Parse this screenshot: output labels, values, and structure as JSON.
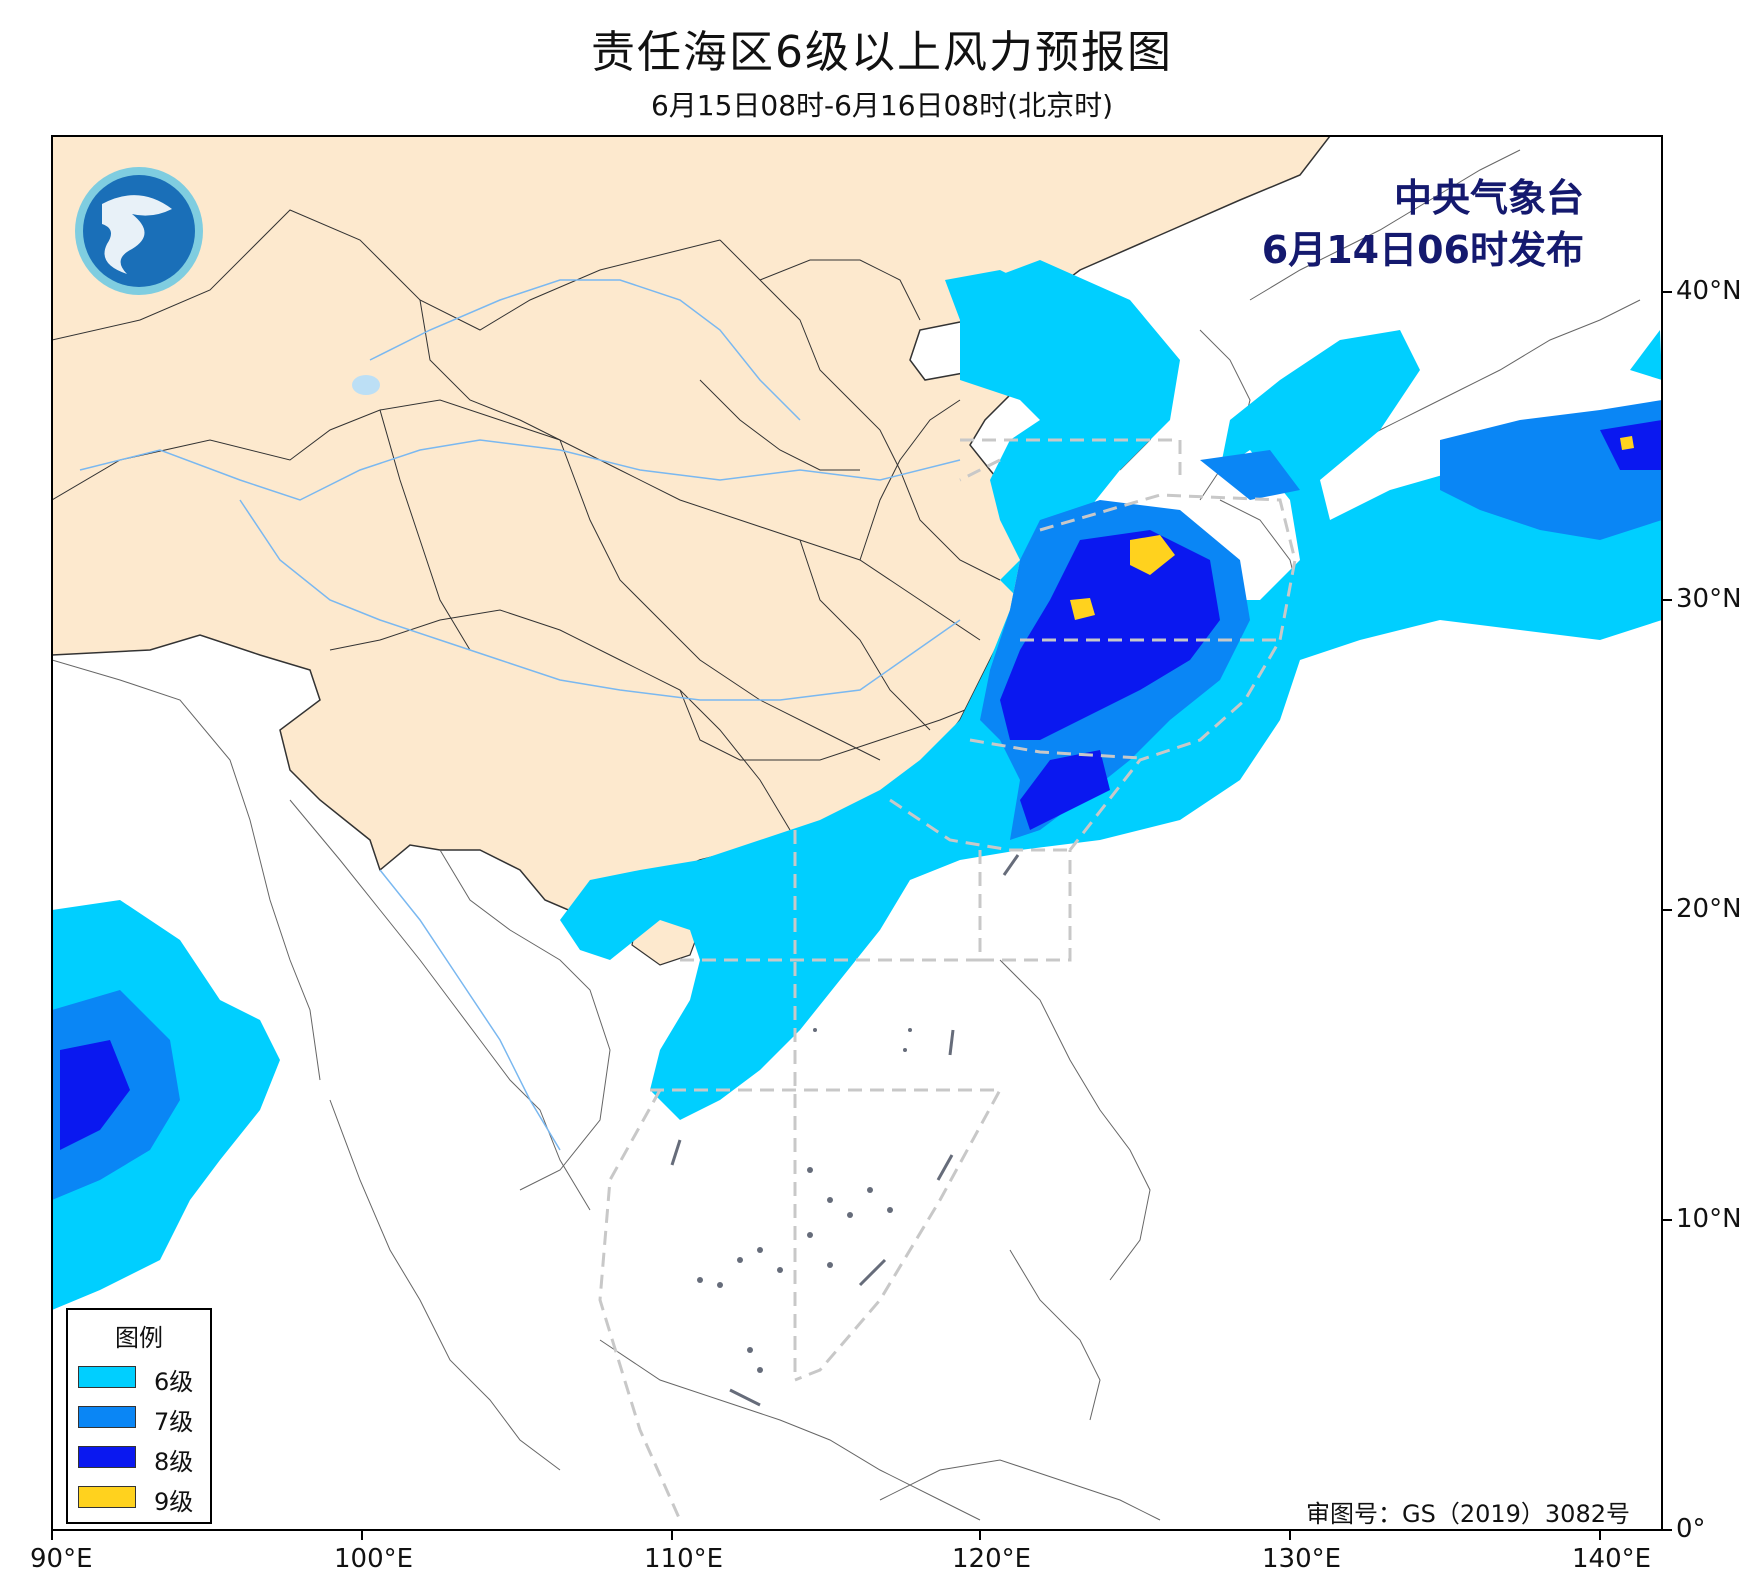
{
  "title": "责任海区6级以上风力预报图",
  "subtitle": "6月15日08时-6月16日08时(北京时)",
  "issuer": {
    "name": "中央气象台",
    "issued": "6月14日06时发布"
  },
  "approval": "审图号：GS（2019）3082号",
  "legend": {
    "title": "图例",
    "items": [
      {
        "label": "6级",
        "color": "#00cfff"
      },
      {
        "label": "7级",
        "color": "#0a86f5"
      },
      {
        "label": "8级",
        "color": "#0a18f0"
      },
      {
        "label": "9级",
        "color": "#ffd21e"
      }
    ]
  },
  "axes": {
    "lon_ticks": [
      "90°E",
      "100°E",
      "110°E",
      "120°E",
      "130°E",
      "140°E"
    ],
    "lat_ticks": [
      "40°N",
      "30°N",
      "20°N",
      "10°N",
      "0°"
    ]
  },
  "colors": {
    "land_china": "#fde9ce",
    "river": "#7ab8f0",
    "boundary": "#333333",
    "sea_zone": "#c8c8c8"
  }
}
